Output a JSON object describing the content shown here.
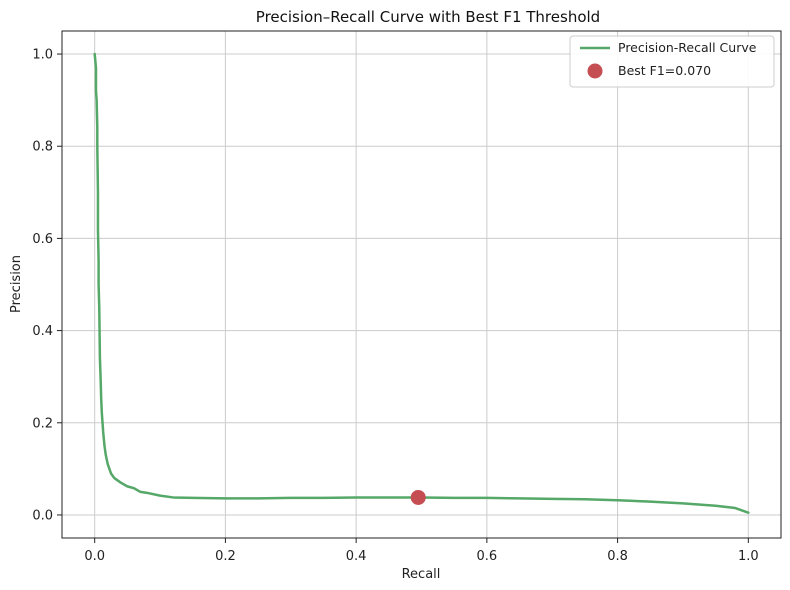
{
  "chart_data": {
    "type": "line",
    "title": "Precision–Recall Curve with Best F1 Threshold",
    "xlabel": "Recall",
    "ylabel": "Precision",
    "xlim": [
      -0.05,
      1.05
    ],
    "ylim": [
      -0.05,
      1.05
    ],
    "xticks": [
      0.0,
      0.2,
      0.4,
      0.6,
      0.8,
      1.0
    ],
    "xtick_labels": [
      "0.0",
      "0.2",
      "0.4",
      "0.6",
      "0.8",
      "1.0"
    ],
    "yticks": [
      0.0,
      0.2,
      0.4,
      0.6,
      0.8,
      1.0
    ],
    "ytick_labels": [
      "0.0",
      "0.2",
      "0.4",
      "0.6",
      "0.8",
      "1.0"
    ],
    "grid": true,
    "legend_position": "top-right",
    "series": [
      {
        "name": "Precision-Recall Curve",
        "kind": "line",
        "color": "#55a868",
        "x": [
          0.0,
          0.002,
          0.002,
          0.003,
          0.004,
          0.004,
          0.005,
          0.005,
          0.006,
          0.006,
          0.007,
          0.008,
          0.009,
          0.01,
          0.011,
          0.012,
          0.013,
          0.015,
          0.017,
          0.02,
          0.025,
          0.03,
          0.04,
          0.05,
          0.06,
          0.07,
          0.08,
          0.1,
          0.12,
          0.15,
          0.2,
          0.25,
          0.3,
          0.35,
          0.4,
          0.45,
          0.5,
          0.55,
          0.6,
          0.65,
          0.7,
          0.75,
          0.8,
          0.85,
          0.9,
          0.95,
          0.98,
          1.0
        ],
        "y": [
          1.0,
          0.97,
          0.92,
          0.9,
          0.84,
          0.8,
          0.7,
          0.62,
          0.55,
          0.5,
          0.45,
          0.34,
          0.3,
          0.25,
          0.22,
          0.2,
          0.18,
          0.15,
          0.13,
          0.11,
          0.09,
          0.08,
          0.07,
          0.062,
          0.058,
          0.05,
          0.048,
          0.042,
          0.038,
          0.037,
          0.036,
          0.036,
          0.037,
          0.037,
          0.038,
          0.038,
          0.038,
          0.037,
          0.037,
          0.036,
          0.035,
          0.034,
          0.032,
          0.029,
          0.025,
          0.02,
          0.015,
          0.005
        ]
      },
      {
        "name": "Best F1=0.070",
        "kind": "scatter",
        "color": "#c44e52",
        "x": [
          0.495
        ],
        "y": [
          0.038
        ]
      }
    ]
  }
}
